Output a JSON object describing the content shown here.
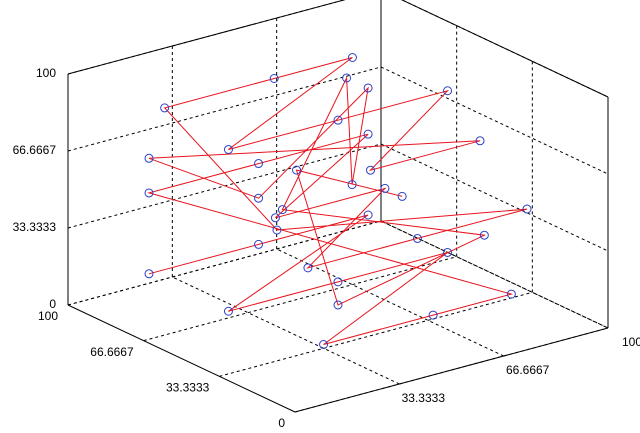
{
  "chart_data": {
    "type": "line3d",
    "xlim": [
      0,
      100
    ],
    "ylim": [
      0,
      100
    ],
    "zlim": [
      0,
      100
    ],
    "xticks": [
      33.3333,
      66.6667,
      100
    ],
    "yticks": [
      0,
      33.3333,
      66.6667,
      100
    ],
    "zticks": [
      0,
      33.3333,
      66.6667,
      100
    ],
    "grid": true,
    "line_color": "#e8141e",
    "marker_color": "#2b3fc8",
    "x": [
      15,
      50,
      85,
      15,
      50,
      85,
      20,
      55,
      80,
      15,
      50,
      85,
      30,
      65,
      15,
      50,
      85,
      45,
      20,
      55,
      80,
      15,
      50,
      85,
      35,
      70,
      15,
      50,
      85,
      40,
      60,
      25,
      75,
      50,
      15,
      85
    ],
    "y": [
      85,
      85,
      85,
      50,
      50,
      50,
      15,
      15,
      15,
      85,
      85,
      85,
      50,
      50,
      15,
      15,
      15,
      70,
      85,
      85,
      85,
      50,
      50,
      50,
      15,
      15,
      85,
      85,
      85,
      30,
      60,
      40,
      20,
      50,
      20,
      70
    ],
    "z": [
      15,
      15,
      15,
      15,
      15,
      15,
      15,
      15,
      15,
      50,
      50,
      50,
      50,
      50,
      50,
      50,
      50,
      30,
      85,
      85,
      85,
      85,
      85,
      85,
      85,
      85,
      65,
      35,
      70,
      70,
      95,
      60,
      40,
      5,
      90,
      30
    ]
  }
}
